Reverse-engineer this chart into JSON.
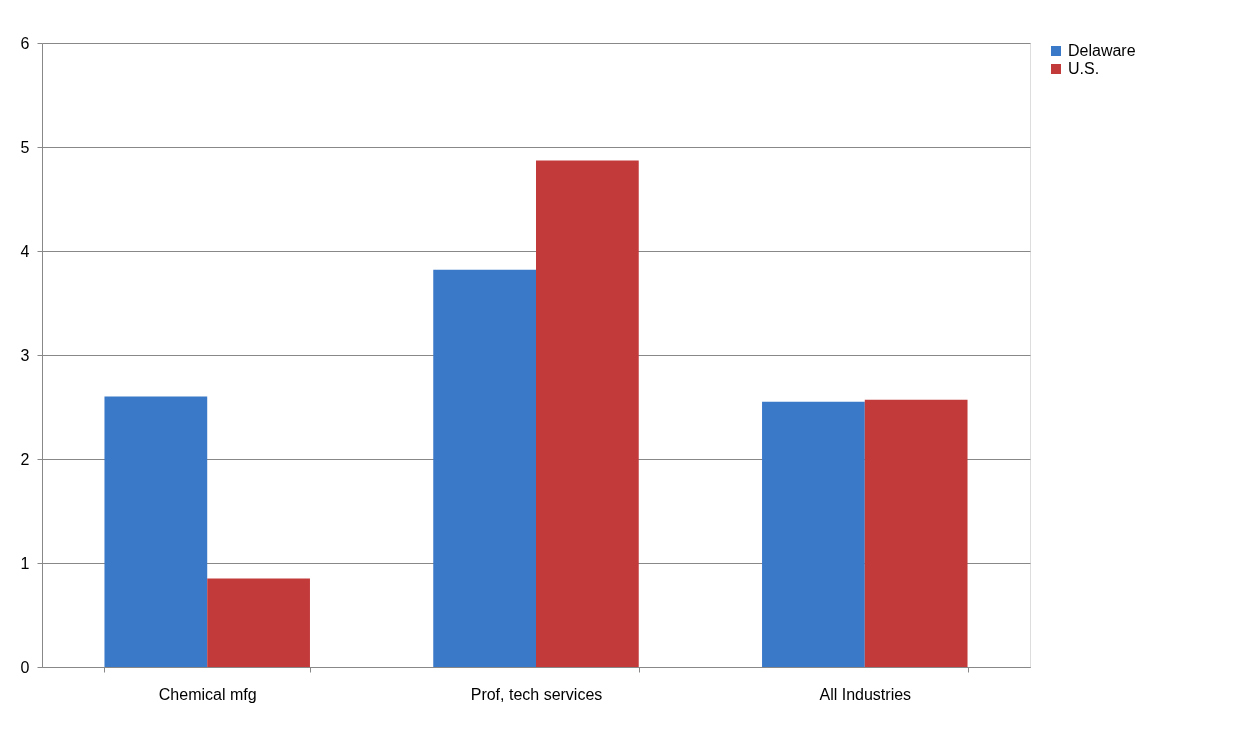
{
  "chart_data": {
    "type": "bar",
    "categories": [
      "Chemical mfg",
      "Prof, tech services",
      "All Industries"
    ],
    "series": [
      {
        "name": "Delaware",
        "color": "#3a78c8",
        "values": [
          2.6,
          3.82,
          2.55
        ]
      },
      {
        "name": "U.S.",
        "color": "#c23b3a",
        "values": [
          0.85,
          4.87,
          2.57
        ]
      }
    ],
    "ylim": [
      0,
      6
    ],
    "yticks": [
      0,
      1,
      2,
      3,
      4,
      5,
      6
    ],
    "grid": "y",
    "legend": "right"
  }
}
